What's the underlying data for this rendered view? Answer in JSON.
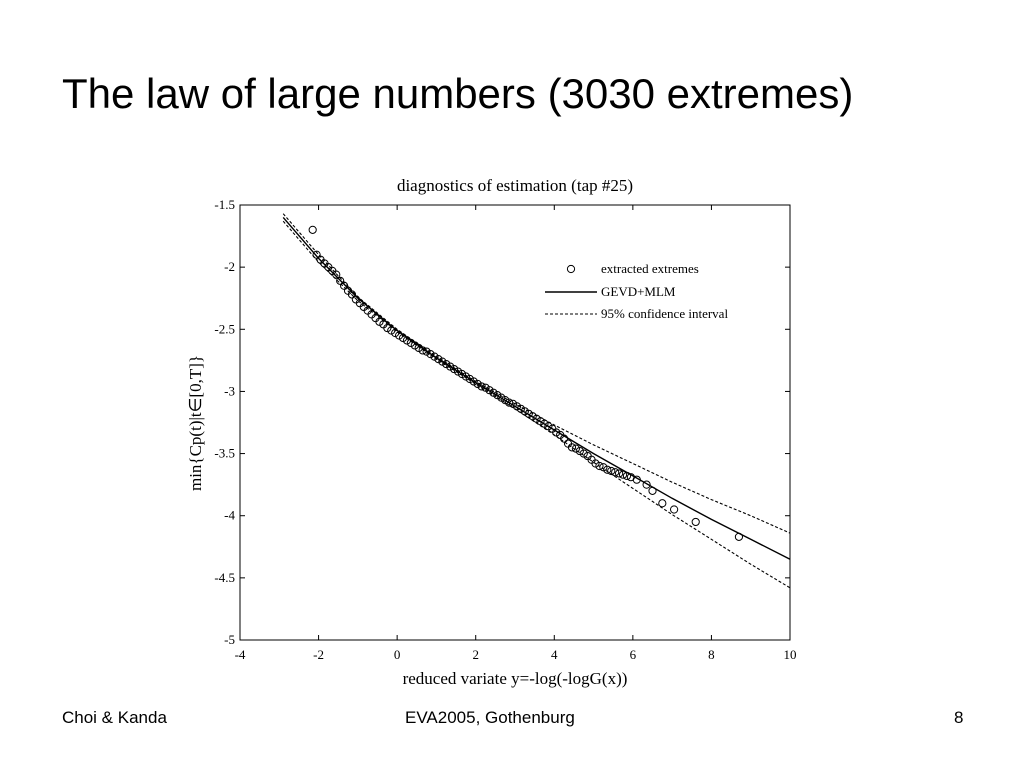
{
  "slide": {
    "title": "The law of large numbers (3030 extremes)",
    "footer_left": "Choi & Kanda",
    "footer_center": "EVA2005, Gothenburg",
    "page_number": "8"
  },
  "chart_data": {
    "type": "scatter",
    "title": "diagnostics of estimation (tap #25)",
    "xlabel": "reduced variate y=-log(-logG(x))",
    "ylabel": "min{Cp(t)|t∈[0,T]}",
    "xlim": [
      -4,
      10
    ],
    "ylim": [
      -5,
      -1.5
    ],
    "xticks": [
      -4,
      -2,
      0,
      2,
      4,
      6,
      8,
      10
    ],
    "xtick_labels": [
      "-4",
      "-2",
      "0",
      "2",
      "4",
      "6",
      "8",
      "10"
    ],
    "yticks": [
      -1.5,
      -2,
      -2.5,
      -3,
      -3.5,
      -4,
      -4.5,
      -5
    ],
    "ytick_labels": [
      "-1.5",
      "-2",
      "-2.5",
      "-3",
      "-3.5",
      "-4",
      "-4.5",
      "-5"
    ],
    "grid": false,
    "legend_position": "top-right",
    "legend": [
      {
        "label": "extracted extremes",
        "style": "circle"
      },
      {
        "label": "GEVD+MLM",
        "style": "solid"
      },
      {
        "label": "95% confidence interval",
        "style": "dashed"
      }
    ],
    "series": [
      {
        "name": "GEVD+MLM",
        "style": "solid",
        "x": [
          -2.9,
          -2,
          -1,
          0,
          1,
          2,
          3,
          4,
          5,
          6,
          7,
          8,
          9,
          10
        ],
        "y": [
          -1.6,
          -1.93,
          -2.25,
          -2.51,
          -2.73,
          -2.93,
          -3.12,
          -3.31,
          -3.5,
          -3.68,
          -3.86,
          -4.03,
          -4.19,
          -4.35
        ]
      },
      {
        "name": "95% confidence interval (upper)",
        "style": "dashed",
        "x": [
          -2.9,
          -2,
          -1,
          0,
          1,
          2,
          3,
          4,
          5,
          6,
          7,
          8,
          9,
          10
        ],
        "y": [
          -1.57,
          -1.9,
          -2.24,
          -2.5,
          -2.72,
          -2.92,
          -3.1,
          -3.27,
          -3.43,
          -3.58,
          -3.73,
          -3.87,
          -4.0,
          -4.14
        ]
      },
      {
        "name": "95% confidence interval (lower)",
        "style": "dashed",
        "x": [
          -2.9,
          -2,
          -1,
          0,
          1,
          2,
          3,
          4,
          5,
          6,
          7,
          8,
          9,
          10
        ],
        "y": [
          -1.63,
          -1.96,
          -2.27,
          -2.52,
          -2.74,
          -2.94,
          -3.14,
          -3.35,
          -3.57,
          -3.78,
          -3.99,
          -4.19,
          -4.39,
          -4.58
        ]
      },
      {
        "name": "extracted extremes",
        "style": "circle",
        "x": [
          -2.15,
          -2.05,
          -1.95,
          -1.85,
          -1.75,
          -1.65,
          -1.55,
          -1.45,
          -1.35,
          -1.25,
          -1.15,
          -1.05,
          -0.95,
          -0.85,
          -0.75,
          -0.65,
          -0.55,
          -0.45,
          -0.35,
          -0.25,
          -0.15,
          -0.05,
          0.05,
          0.15,
          0.25,
          0.35,
          0.45,
          0.55,
          0.65,
          0.75,
          0.85,
          0.95,
          1.05,
          1.15,
          1.25,
          1.35,
          1.45,
          1.55,
          1.65,
          1.75,
          1.85,
          1.95,
          2.05,
          2.15,
          2.25,
          2.35,
          2.45,
          2.55,
          2.65,
          2.75,
          2.85,
          2.95,
          3.05,
          3.15,
          3.25,
          3.35,
          3.45,
          3.55,
          3.65,
          3.75,
          3.85,
          3.95,
          4.05,
          4.15,
          4.25,
          4.35,
          4.45,
          4.55,
          4.65,
          4.75,
          4.85,
          4.95,
          5.05,
          5.15,
          5.25,
          5.35,
          5.45,
          5.55,
          5.65,
          5.75,
          5.85,
          5.95,
          6.1,
          6.35,
          6.5,
          6.75,
          7.05,
          7.6,
          8.7
        ],
        "y": [
          -1.7,
          -1.9,
          -1.94,
          -1.97,
          -2.0,
          -2.03,
          -2.06,
          -2.11,
          -2.15,
          -2.19,
          -2.22,
          -2.26,
          -2.29,
          -2.32,
          -2.35,
          -2.38,
          -2.41,
          -2.44,
          -2.46,
          -2.49,
          -2.51,
          -2.53,
          -2.55,
          -2.57,
          -2.59,
          -2.61,
          -2.63,
          -2.65,
          -2.67,
          -2.68,
          -2.7,
          -2.72,
          -2.74,
          -2.76,
          -2.78,
          -2.8,
          -2.82,
          -2.84,
          -2.86,
          -2.88,
          -2.9,
          -2.92,
          -2.94,
          -2.96,
          -2.97,
          -2.99,
          -3.01,
          -3.03,
          -3.05,
          -3.07,
          -3.09,
          -3.1,
          -3.12,
          -3.14,
          -3.16,
          -3.18,
          -3.2,
          -3.22,
          -3.24,
          -3.26,
          -3.28,
          -3.3,
          -3.33,
          -3.35,
          -3.38,
          -3.42,
          -3.45,
          -3.46,
          -3.48,
          -3.5,
          -3.52,
          -3.55,
          -3.58,
          -3.6,
          -3.61,
          -3.63,
          -3.64,
          -3.65,
          -3.66,
          -3.67,
          -3.68,
          -3.69,
          -3.71,
          -3.75,
          -3.8,
          -3.9,
          -3.95,
          -4.05,
          -4.17
        ]
      }
    ]
  }
}
